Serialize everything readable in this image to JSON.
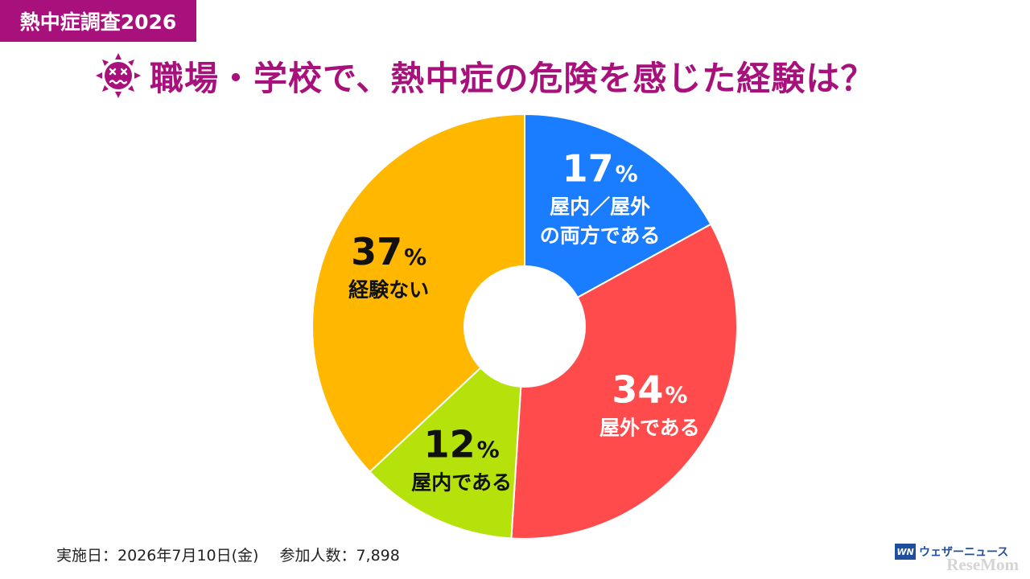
{
  "header": {
    "tag_label": "熱中症調査2026",
    "title": "職場・学校で、熱中症の危険を感じた経験は？",
    "title_icon": "dizzy-sun-face-icon"
  },
  "chart_data": {
    "type": "pie",
    "donut": true,
    "title": "職場・学校で、熱中症の危険を感じた経験は？",
    "unit": "%",
    "slices": [
      {
        "label": "屋内／屋外の両方である",
        "label_lines": [
          "屋内／屋外",
          "の両方である"
        ],
        "value": 17,
        "value_text": "17",
        "color": "#1a7dff",
        "text_color": "#ffffff"
      },
      {
        "label": "屋外である",
        "label_lines": [
          "屋外である"
        ],
        "value": 34,
        "value_text": "34",
        "color": "#ff4b4b",
        "text_color": "#ffffff"
      },
      {
        "label": "屋内である",
        "label_lines": [
          "屋内である"
        ],
        "value": 12,
        "value_text": "12",
        "color": "#b5e20a",
        "text_color": "#111111"
      },
      {
        "label": "経験ない",
        "label_lines": [
          "経験ない"
        ],
        "value": 37,
        "value_text": "37",
        "color": "#ffb700",
        "text_color": "#111111"
      }
    ]
  },
  "footer": {
    "date_text": "実施日：2026年7月10日(金)",
    "participants_text": "参加人数：7,898"
  },
  "brand": {
    "logo_text": "WN",
    "name": "ウェザーニュース"
  },
  "watermark": "ReseMom"
}
